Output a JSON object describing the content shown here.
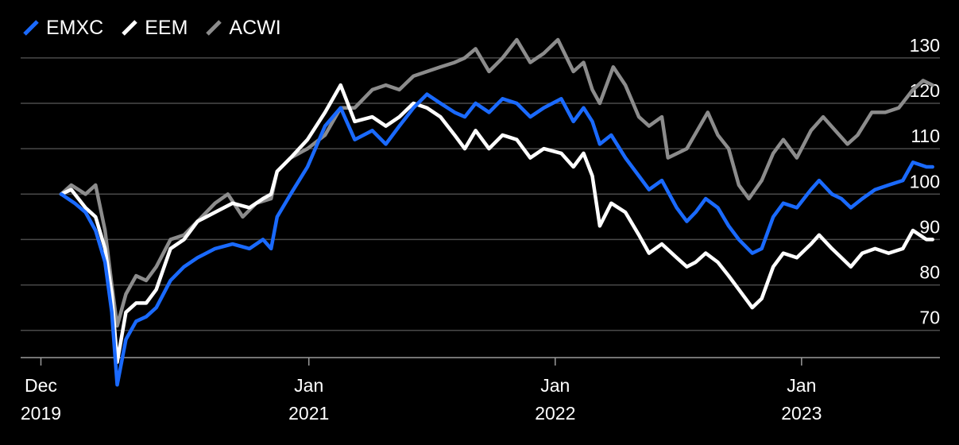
{
  "chart_data": {
    "type": "line",
    "title": "",
    "xlabel": "",
    "ylabel": "",
    "ylim": [
      64,
      134
    ],
    "yticks": [
      70,
      80,
      90,
      100,
      110,
      120,
      130
    ],
    "xticks": [
      {
        "date": "2019-12-01",
        "line1": "Dec",
        "line2": "2019"
      },
      {
        "date": "2021-01-01",
        "line1": "Jan",
        "line2": "2021"
      },
      {
        "date": "2022-01-01",
        "line1": "Jan",
        "line2": "2022"
      },
      {
        "date": "2023-01-01",
        "line1": "Jan",
        "line2": "2023"
      }
    ],
    "xlim": [
      "2019-11-01",
      "2023-07-25"
    ],
    "grid": true,
    "legend_position": "top-left",
    "series": [
      {
        "name": "EMXC",
        "color": "#1A6AFF",
        "points": [
          [
            "2019-12-31",
            100
          ],
          [
            "2020-01-20",
            98
          ],
          [
            "2020-02-05",
            96
          ],
          [
            "2020-02-20",
            92
          ],
          [
            "2020-03-05",
            85
          ],
          [
            "2020-03-15",
            74
          ],
          [
            "2020-03-23",
            58
          ],
          [
            "2020-04-05",
            68
          ],
          [
            "2020-04-20",
            72
          ],
          [
            "2020-05-05",
            73
          ],
          [
            "2020-05-20",
            75
          ],
          [
            "2020-06-10",
            81
          ],
          [
            "2020-06-30",
            84
          ],
          [
            "2020-07-20",
            86
          ],
          [
            "2020-08-15",
            88
          ],
          [
            "2020-09-10",
            89
          ],
          [
            "2020-10-05",
            88
          ],
          [
            "2020-10-25",
            90
          ],
          [
            "2020-11-06",
            88
          ],
          [
            "2020-11-15",
            95
          ],
          [
            "2020-12-05",
            100
          ],
          [
            "2020-12-30",
            106
          ],
          [
            "2021-01-25",
            115
          ],
          [
            "2021-02-17",
            119
          ],
          [
            "2021-03-10",
            112
          ],
          [
            "2021-04-05",
            114
          ],
          [
            "2021-04-25",
            111
          ],
          [
            "2021-05-15",
            115
          ],
          [
            "2021-06-05",
            119
          ],
          [
            "2021-06-25",
            122
          ],
          [
            "2021-07-15",
            120
          ],
          [
            "2021-08-05",
            118
          ],
          [
            "2021-08-20",
            117
          ],
          [
            "2021-09-05",
            120
          ],
          [
            "2021-09-25",
            118
          ],
          [
            "2021-10-15",
            121
          ],
          [
            "2021-11-05",
            120
          ],
          [
            "2021-11-25",
            117
          ],
          [
            "2021-12-15",
            119
          ],
          [
            "2022-01-10",
            121
          ],
          [
            "2022-01-28",
            116
          ],
          [
            "2022-02-12",
            119
          ],
          [
            "2022-02-25",
            116
          ],
          [
            "2022-03-08",
            111
          ],
          [
            "2022-03-25",
            113
          ],
          [
            "2022-04-15",
            108
          ],
          [
            "2022-05-05",
            104
          ],
          [
            "2022-05-20",
            101
          ],
          [
            "2022-06-08",
            103
          ],
          [
            "2022-06-30",
            97
          ],
          [
            "2022-07-15",
            94
          ],
          [
            "2022-07-28",
            96
          ],
          [
            "2022-08-12",
            99
          ],
          [
            "2022-08-30",
            97
          ],
          [
            "2022-09-15",
            93
          ],
          [
            "2022-09-30",
            90
          ],
          [
            "2022-10-20",
            87
          ],
          [
            "2022-11-03",
            88
          ],
          [
            "2022-11-20",
            95
          ],
          [
            "2022-12-05",
            98
          ],
          [
            "2022-12-25",
            97
          ],
          [
            "2023-01-15",
            101
          ],
          [
            "2023-01-27",
            103
          ],
          [
            "2023-02-15",
            100
          ],
          [
            "2023-03-01",
            99
          ],
          [
            "2023-03-15",
            97
          ],
          [
            "2023-04-01",
            99
          ],
          [
            "2023-04-20",
            101
          ],
          [
            "2023-05-10",
            102
          ],
          [
            "2023-05-31",
            103
          ],
          [
            "2023-06-15",
            107
          ],
          [
            "2023-07-05",
            106
          ],
          [
            "2023-07-14",
            106
          ]
        ]
      },
      {
        "name": "EEM",
        "color": "#FFFFFF",
        "points": [
          [
            "2019-12-31",
            100
          ],
          [
            "2020-01-15",
            101
          ],
          [
            "2020-02-05",
            97
          ],
          [
            "2020-02-20",
            95
          ],
          [
            "2020-03-05",
            88
          ],
          [
            "2020-03-15",
            78
          ],
          [
            "2020-03-23",
            63
          ],
          [
            "2020-04-05",
            74
          ],
          [
            "2020-04-20",
            76
          ],
          [
            "2020-05-05",
            76
          ],
          [
            "2020-05-20",
            79
          ],
          [
            "2020-06-10",
            88
          ],
          [
            "2020-06-30",
            90
          ],
          [
            "2020-07-20",
            94
          ],
          [
            "2020-08-15",
            96
          ],
          [
            "2020-09-10",
            98
          ],
          [
            "2020-10-05",
            97
          ],
          [
            "2020-10-25",
            99
          ],
          [
            "2020-11-06",
            100
          ],
          [
            "2020-11-15",
            105
          ],
          [
            "2020-12-05",
            108
          ],
          [
            "2020-12-30",
            112
          ],
          [
            "2021-01-25",
            118
          ],
          [
            "2021-02-17",
            124
          ],
          [
            "2021-03-10",
            116
          ],
          [
            "2021-04-05",
            117
          ],
          [
            "2021-04-25",
            115
          ],
          [
            "2021-05-15",
            117
          ],
          [
            "2021-06-05",
            120
          ],
          [
            "2021-06-25",
            119
          ],
          [
            "2021-07-15",
            117
          ],
          [
            "2021-08-05",
            113
          ],
          [
            "2021-08-20",
            110
          ],
          [
            "2021-09-05",
            114
          ],
          [
            "2021-09-25",
            110
          ],
          [
            "2021-10-15",
            113
          ],
          [
            "2021-11-05",
            112
          ],
          [
            "2021-11-25",
            108
          ],
          [
            "2021-12-15",
            110
          ],
          [
            "2022-01-10",
            109
          ],
          [
            "2022-01-28",
            106
          ],
          [
            "2022-02-12",
            109
          ],
          [
            "2022-02-25",
            104
          ],
          [
            "2022-03-08",
            93
          ],
          [
            "2022-03-25",
            98
          ],
          [
            "2022-04-15",
            96
          ],
          [
            "2022-05-05",
            91
          ],
          [
            "2022-05-20",
            87
          ],
          [
            "2022-06-08",
            89
          ],
          [
            "2022-06-30",
            86
          ],
          [
            "2022-07-15",
            84
          ],
          [
            "2022-07-28",
            85
          ],
          [
            "2022-08-12",
            87
          ],
          [
            "2022-08-30",
            85
          ],
          [
            "2022-09-15",
            82
          ],
          [
            "2022-09-30",
            79
          ],
          [
            "2022-10-20",
            75
          ],
          [
            "2022-11-03",
            77
          ],
          [
            "2022-11-20",
            84
          ],
          [
            "2022-12-05",
            87
          ],
          [
            "2022-12-25",
            86
          ],
          [
            "2023-01-15",
            89
          ],
          [
            "2023-01-27",
            91
          ],
          [
            "2023-02-15",
            88
          ],
          [
            "2023-03-01",
            86
          ],
          [
            "2023-03-15",
            84
          ],
          [
            "2023-04-01",
            87
          ],
          [
            "2023-04-20",
            88
          ],
          [
            "2023-05-10",
            87
          ],
          [
            "2023-05-31",
            88
          ],
          [
            "2023-06-15",
            92
          ],
          [
            "2023-07-05",
            90
          ],
          [
            "2023-07-14",
            90
          ]
        ]
      },
      {
        "name": "ACWI",
        "color": "#8C8C8C",
        "points": [
          [
            "2019-12-31",
            100
          ],
          [
            "2020-01-15",
            102
          ],
          [
            "2020-02-05",
            100
          ],
          [
            "2020-02-20",
            102
          ],
          [
            "2020-03-05",
            92
          ],
          [
            "2020-03-15",
            80
          ],
          [
            "2020-03-23",
            71
          ],
          [
            "2020-04-05",
            78
          ],
          [
            "2020-04-20",
            82
          ],
          [
            "2020-05-05",
            81
          ],
          [
            "2020-05-20",
            84
          ],
          [
            "2020-06-10",
            90
          ],
          [
            "2020-06-30",
            91
          ],
          [
            "2020-07-20",
            94
          ],
          [
            "2020-08-15",
            98
          ],
          [
            "2020-09-03",
            100
          ],
          [
            "2020-09-25",
            95
          ],
          [
            "2020-10-15",
            98
          ],
          [
            "2020-11-06",
            99
          ],
          [
            "2020-11-15",
            105
          ],
          [
            "2020-12-05",
            108
          ],
          [
            "2020-12-30",
            110
          ],
          [
            "2021-01-25",
            113
          ],
          [
            "2021-02-17",
            119
          ],
          [
            "2021-03-10",
            119
          ],
          [
            "2021-04-05",
            123
          ],
          [
            "2021-04-25",
            124
          ],
          [
            "2021-05-15",
            123
          ],
          [
            "2021-06-05",
            126
          ],
          [
            "2021-06-25",
            127
          ],
          [
            "2021-07-15",
            128
          ],
          [
            "2021-08-05",
            129
          ],
          [
            "2021-08-20",
            130
          ],
          [
            "2021-09-05",
            132
          ],
          [
            "2021-09-25",
            127
          ],
          [
            "2021-10-15",
            130
          ],
          [
            "2021-11-05",
            134
          ],
          [
            "2021-11-25",
            129
          ],
          [
            "2021-12-15",
            131
          ],
          [
            "2022-01-05",
            134
          ],
          [
            "2022-01-28",
            127
          ],
          [
            "2022-02-12",
            129
          ],
          [
            "2022-02-25",
            123
          ],
          [
            "2022-03-08",
            120
          ],
          [
            "2022-03-28",
            128
          ],
          [
            "2022-04-15",
            124
          ],
          [
            "2022-05-05",
            117
          ],
          [
            "2022-05-20",
            115
          ],
          [
            "2022-06-08",
            117
          ],
          [
            "2022-06-17",
            108
          ],
          [
            "2022-07-15",
            110
          ],
          [
            "2022-08-15",
            118
          ],
          [
            "2022-08-30",
            113
          ],
          [
            "2022-09-15",
            110
          ],
          [
            "2022-09-30",
            102
          ],
          [
            "2022-10-15",
            99
          ],
          [
            "2022-11-03",
            103
          ],
          [
            "2022-11-20",
            109
          ],
          [
            "2022-12-05",
            112
          ],
          [
            "2022-12-25",
            108
          ],
          [
            "2023-01-15",
            114
          ],
          [
            "2023-02-02",
            117
          ],
          [
            "2023-02-20",
            114
          ],
          [
            "2023-03-10",
            111
          ],
          [
            "2023-03-25",
            113
          ],
          [
            "2023-04-15",
            118
          ],
          [
            "2023-05-05",
            118
          ],
          [
            "2023-05-25",
            119
          ],
          [
            "2023-06-15",
            123
          ],
          [
            "2023-06-30",
            125
          ],
          [
            "2023-07-14",
            124
          ]
        ]
      }
    ]
  }
}
